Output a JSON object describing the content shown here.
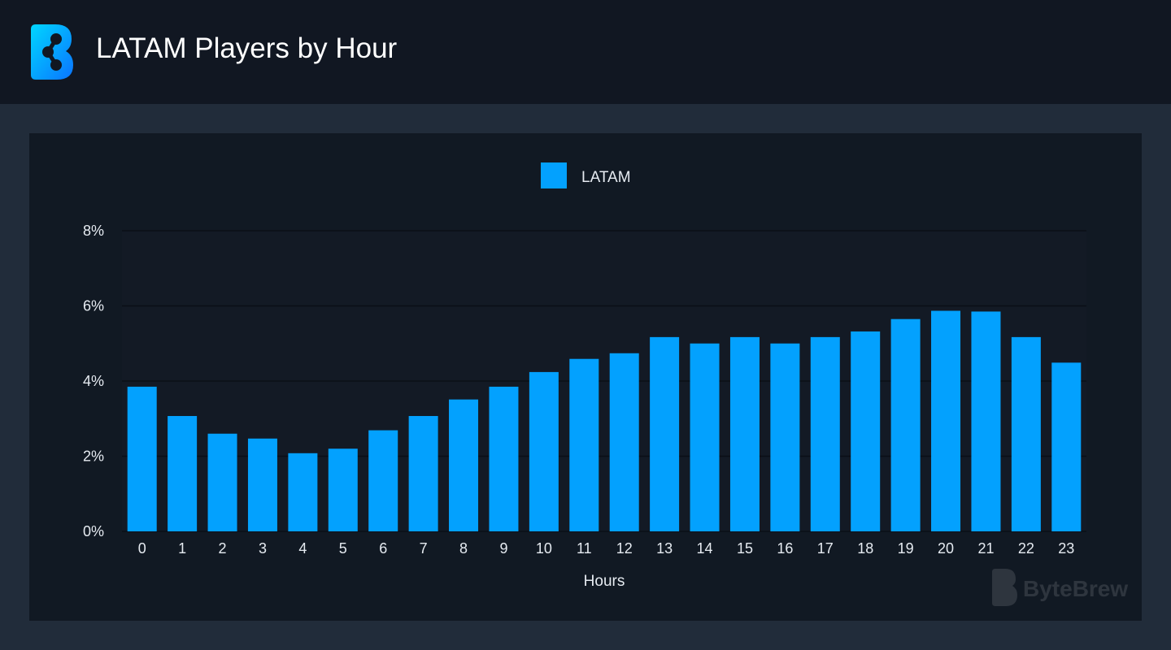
{
  "header": {
    "title": "LATAM Players by Hour"
  },
  "brand": {
    "logo_text": "ByteBrew"
  },
  "colors": {
    "bar": "#03a1fe",
    "background": "#212c3a",
    "header": "#111722",
    "panel": "#111923"
  },
  "chart_data": {
    "type": "bar",
    "title": "LATAM Players by Hour",
    "xlabel": "Hours",
    "ylabel": "",
    "categories": [
      "0",
      "1",
      "2",
      "3",
      "4",
      "5",
      "6",
      "7",
      "8",
      "9",
      "10",
      "11",
      "12",
      "13",
      "14",
      "15",
      "16",
      "17",
      "18",
      "19",
      "20",
      "21",
      "22",
      "23"
    ],
    "series": [
      {
        "name": "LATAM",
        "values": [
          3.85,
          3.07,
          2.6,
          2.47,
          2.08,
          2.2,
          2.69,
          3.07,
          3.51,
          3.85,
          4.24,
          4.59,
          4.74,
          5.17,
          5.0,
          5.17,
          5.0,
          5.17,
          5.32,
          5.65,
          5.87,
          5.85,
          5.17,
          4.49
        ]
      }
    ],
    "ylim": [
      0,
      8
    ],
    "yticks": [
      0,
      2,
      4,
      6,
      8
    ],
    "ytick_labels": [
      "0%",
      "2%",
      "4%",
      "6%",
      "8%"
    ],
    "legend_position": "top-center",
    "grid": true
  }
}
